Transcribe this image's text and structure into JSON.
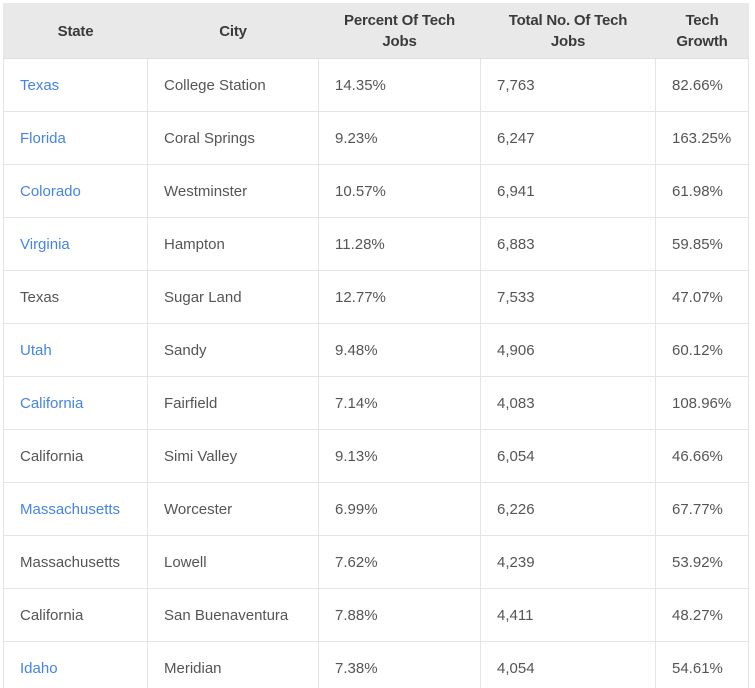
{
  "table": {
    "columns": [
      {
        "label": "State"
      },
      {
        "label": "City"
      },
      {
        "label": "Percent Of Tech Jobs"
      },
      {
        "label": "Total No. Of Tech Jobs"
      },
      {
        "label": "Tech Growth"
      }
    ],
    "rows": [
      {
        "state": "Texas",
        "state_is_link": true,
        "city": "College Station",
        "percent_of_tech_jobs": "14.35%",
        "total_no_of_tech_jobs": "7,763",
        "tech_growth": "82.66%"
      },
      {
        "state": "Florida",
        "state_is_link": true,
        "city": "Coral Springs",
        "percent_of_tech_jobs": "9.23%",
        "total_no_of_tech_jobs": "6,247",
        "tech_growth": "163.25%"
      },
      {
        "state": "Colorado",
        "state_is_link": true,
        "city": "Westminster",
        "percent_of_tech_jobs": "10.57%",
        "total_no_of_tech_jobs": "6,941",
        "tech_growth": "61.98%"
      },
      {
        "state": "Virginia",
        "state_is_link": true,
        "city": "Hampton",
        "percent_of_tech_jobs": "11.28%",
        "total_no_of_tech_jobs": "6,883",
        "tech_growth": "59.85%"
      },
      {
        "state": "Texas",
        "state_is_link": false,
        "city": "Sugar Land",
        "percent_of_tech_jobs": "12.77%",
        "total_no_of_tech_jobs": "7,533",
        "tech_growth": "47.07%"
      },
      {
        "state": "Utah",
        "state_is_link": true,
        "city": "Sandy",
        "percent_of_tech_jobs": "9.48%",
        "total_no_of_tech_jobs": "4,906",
        "tech_growth": "60.12%"
      },
      {
        "state": "California",
        "state_is_link": true,
        "city": "Fairfield",
        "percent_of_tech_jobs": "7.14%",
        "total_no_of_tech_jobs": "4,083",
        "tech_growth": "108.96%"
      },
      {
        "state": "California",
        "state_is_link": false,
        "city": "Simi Valley",
        "percent_of_tech_jobs": "9.13%",
        "total_no_of_tech_jobs": "6,054",
        "tech_growth": "46.66%"
      },
      {
        "state": "Massachusetts",
        "state_is_link": true,
        "city": "Worcester",
        "percent_of_tech_jobs": "6.99%",
        "total_no_of_tech_jobs": "6,226",
        "tech_growth": "67.77%"
      },
      {
        "state": "Massachusetts",
        "state_is_link": false,
        "city": "Lowell",
        "percent_of_tech_jobs": "7.62%",
        "total_no_of_tech_jobs": "4,239",
        "tech_growth": "53.92%"
      },
      {
        "state": "California",
        "state_is_link": false,
        "city": "San Buenaventura",
        "percent_of_tech_jobs": "7.88%",
        "total_no_of_tech_jobs": "4,411",
        "tech_growth": "48.27%"
      },
      {
        "state": "Idaho",
        "state_is_link": true,
        "city": "Meridian",
        "percent_of_tech_jobs": "7.38%",
        "total_no_of_tech_jobs": "4,054",
        "tech_growth": "54.61%"
      }
    ]
  },
  "colors": {
    "link_blue": "#4584e6",
    "header_bg": "#e9e9e9",
    "header_text": "#3b3b3b",
    "body_text": "#555555",
    "border": "#e4e4e4"
  },
  "chart_data": {
    "type": "table",
    "title": "",
    "columns": [
      "State",
      "City",
      "Percent Of Tech Jobs",
      "Total No. Of Tech Jobs",
      "Tech Growth"
    ],
    "rows": [
      [
        "Texas",
        "College Station",
        "14.35%",
        "7,763",
        "82.66%"
      ],
      [
        "Florida",
        "Coral Springs",
        "9.23%",
        "6,247",
        "163.25%"
      ],
      [
        "Colorado",
        "Westminster",
        "10.57%",
        "6,941",
        "61.98%"
      ],
      [
        "Virginia",
        "Hampton",
        "11.28%",
        "6,883",
        "59.85%"
      ],
      [
        "Texas",
        "Sugar Land",
        "12.77%",
        "7,533",
        "47.07%"
      ],
      [
        "Utah",
        "Sandy",
        "9.48%",
        "4,906",
        "60.12%"
      ],
      [
        "California",
        "Fairfield",
        "7.14%",
        "4,083",
        "108.96%"
      ],
      [
        "California",
        "Simi Valley",
        "9.13%",
        "6,054",
        "46.66%"
      ],
      [
        "Massachusetts",
        "Worcester",
        "6.99%",
        "6,226",
        "67.77%"
      ],
      [
        "Massachusetts",
        "Lowell",
        "7.62%",
        "4,239",
        "53.92%"
      ],
      [
        "California",
        "San Buenaventura",
        "7.88%",
        "4,411",
        "48.27%"
      ],
      [
        "Idaho",
        "Meridian",
        "7.38%",
        "4,054",
        "54.61%"
      ]
    ]
  }
}
